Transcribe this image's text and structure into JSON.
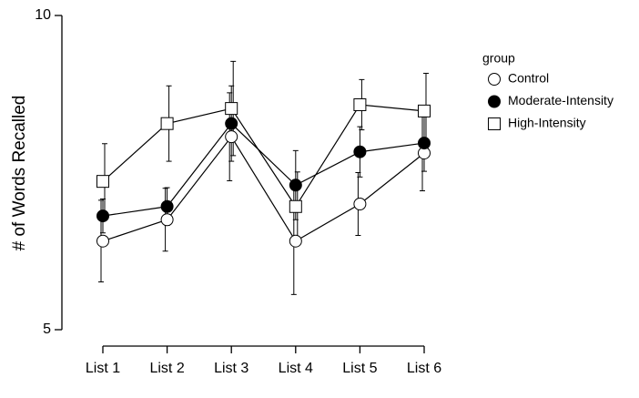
{
  "chart_data": {
    "type": "line",
    "y_label": "# of Words Recalled",
    "categories": [
      "List 1",
      "List 2",
      "List 3",
      "List 4",
      "List 5",
      "List 6"
    ],
    "legend_title": "group",
    "ylim": [
      5,
      10
    ],
    "yticks": [
      5,
      10
    ],
    "series": [
      {
        "name": "Control",
        "marker": "circle",
        "fill": "#ffffff",
        "color": "#000000",
        "values": [
          6.41,
          6.75,
          8.07,
          6.41,
          7.0,
          7.81
        ],
        "errors": [
          0.65,
          0.5,
          0.7,
          0.85,
          0.5,
          0.6
        ]
      },
      {
        "name": "Moderate-Intensity",
        "marker": "circle",
        "fill": "#000000",
        "color": "#000000",
        "values": [
          6.81,
          6.96,
          8.28,
          7.3,
          7.83,
          7.97
        ],
        "errors": [
          0.27,
          0.3,
          0.6,
          0.55,
          0.4,
          0.45
        ]
      },
      {
        "name": "High-Intensity",
        "marker": "square",
        "fill": "#ffffff",
        "color": "#000000",
        "values": [
          7.36,
          8.28,
          8.52,
          6.96,
          8.58,
          8.48
        ],
        "errors": [
          0.6,
          0.6,
          0.75,
          0.55,
          0.4,
          0.6
        ]
      }
    ]
  }
}
